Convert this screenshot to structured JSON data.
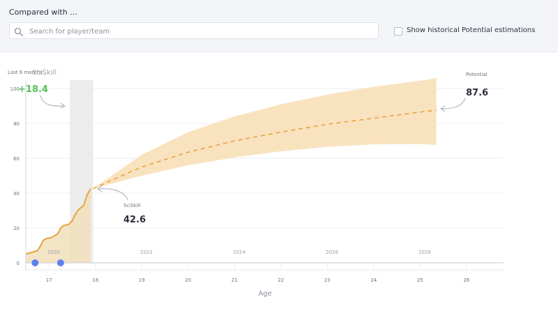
{
  "header": {
    "compare_label": "Compared with ...",
    "search_placeholder": "Search for player/team",
    "search_value": "",
    "historical_checkbox_label": "Show historical Potential estimations",
    "historical_checked": false
  },
  "chart": {
    "recent_label": "Last 6 months",
    "sciskill_header": "SciSkill",
    "recent_change": "+18.4",
    "current_label": "SciSkill",
    "current_value": "42.6",
    "potential_label": "Potential",
    "potential_value": "87.6",
    "x_axis_title": "Age"
  },
  "colors": {
    "accent": "#e8a33d",
    "band_fill": "#f9e3bf",
    "history_fill": "#f2dfbc",
    "highlight_band": "#ececec",
    "positive": "#56c05a",
    "marker": "#5b82f0",
    "arrow": "#b4b8c2",
    "grid": "#ececec"
  },
  "chart_data": {
    "type": "line",
    "xlabel": "Age",
    "ylabel": "",
    "x_range": [
      16.5,
      26.8
    ],
    "ylim": [
      0,
      100
    ],
    "x_ticks": [
      17,
      18,
      19,
      20,
      21,
      22,
      23,
      24,
      25,
      26
    ],
    "y_ticks": [
      0,
      20,
      40,
      60,
      80,
      100
    ],
    "year_ticks": [
      {
        "label": "2020",
        "age": 17.1
      },
      {
        "label": "2022",
        "age": 19.1
      },
      {
        "label": "2024",
        "age": 21.1
      },
      {
        "label": "2026",
        "age": 23.1
      },
      {
        "label": "2028",
        "age": 25.1
      }
    ],
    "highlight_range": [
      17.45,
      17.95
    ],
    "series": [
      {
        "kind": "history",
        "x": [
          16.5,
          16.75,
          16.8,
          16.88,
          16.95,
          17.05,
          17.12,
          17.2,
          17.25,
          17.32,
          17.42,
          17.5,
          17.55,
          17.62,
          17.68,
          17.75,
          17.82,
          17.9
        ],
        "values": [
          5,
          7,
          9,
          13,
          14,
          14.5,
          15.5,
          17,
          20,
          21.5,
          22,
          24,
          27,
          30,
          31.5,
          33,
          39,
          42.6
        ]
      },
      {
        "kind": "projection",
        "x": [
          17.95,
          19,
          20,
          21,
          22,
          23,
          24,
          25,
          25.35
        ],
        "values": [
          42.6,
          55,
          63.5,
          70,
          75,
          79.5,
          83,
          86.5,
          87.6
        ]
      },
      {
        "kind": "projection_upper",
        "x": [
          17.95,
          19,
          20,
          21,
          22,
          23,
          24,
          25,
          25.35
        ],
        "values": [
          42.6,
          62,
          75,
          84,
          91,
          96.5,
          101,
          104.5,
          106
        ]
      },
      {
        "kind": "projection_lower",
        "x": [
          17.95,
          19,
          20,
          21,
          22,
          23,
          24,
          25,
          25.35
        ],
        "values": [
          42.6,
          50,
          56,
          60.5,
          64,
          66.5,
          68,
          68.2,
          67.5
        ]
      }
    ],
    "markers_x": [
      16.7,
      17.25
    ]
  }
}
